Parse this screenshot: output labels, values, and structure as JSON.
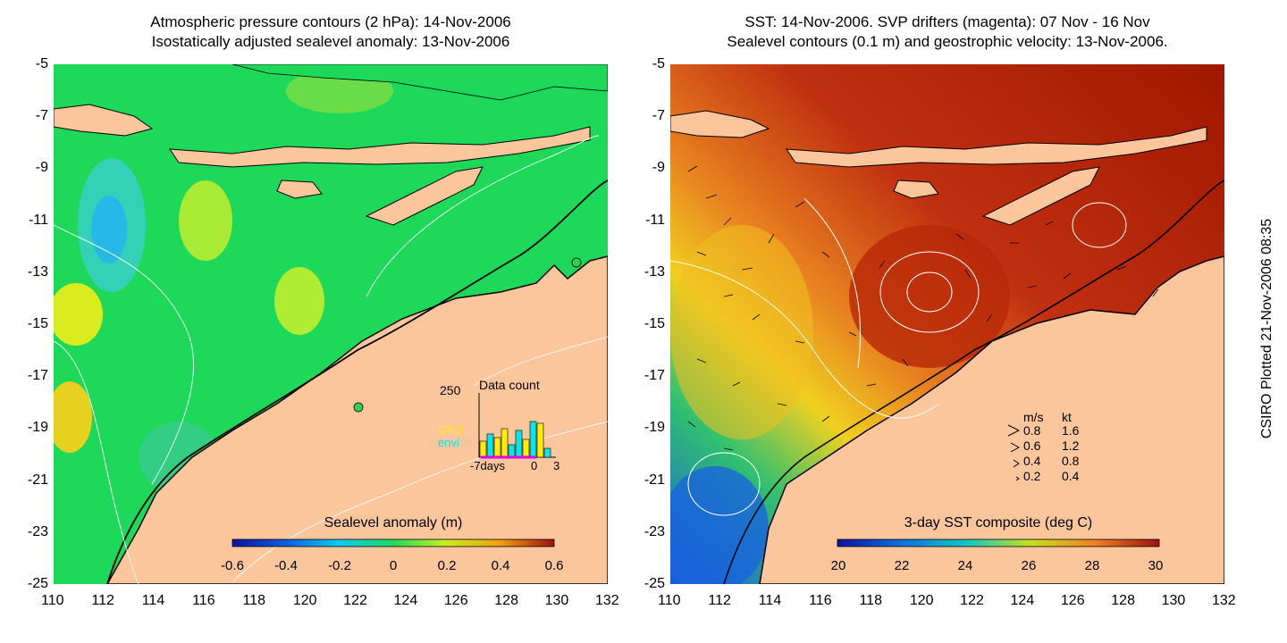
{
  "left_panel": {
    "title_line1": "Atmospheric pressure contours (2 hPa): 14-Nov-2006",
    "title_line2": "Isostatically adjusted sealevel anomaly: 13-Nov-2006",
    "colorbar_label": "Sealevel anomaly (m)",
    "colorbar_ticks": [
      "-0.6",
      "-0.4",
      "-0.2",
      "0",
      "0.2",
      "0.4",
      "0.6"
    ],
    "inset": {
      "title": "Data count",
      "y_max_label": "250",
      "legend_gfo": "GFO",
      "legend_envi": "envi",
      "x_labels": [
        "-7days",
        "0",
        "3"
      ],
      "gfo_color": "#ffee00",
      "envi_color": "#00e8f0"
    }
  },
  "right_panel": {
    "title_line1": "SST: 14-Nov-2006. SVP drifters (magenta): 07 Nov - 16 Nov",
    "title_line2": "Sealevel contours (0.1 m) and geostrophic velocity: 13-Nov-2006.",
    "colorbar_label": "3-day SST composite (deg C)",
    "colorbar_ticks": [
      "20",
      "22",
      "24",
      "26",
      "28",
      "30"
    ],
    "velocity_legend": {
      "header_ms": "m/s",
      "header_kt": "kt",
      "rows": [
        {
          "ms": "0.8",
          "kt": "1.6"
        },
        {
          "ms": "0.6",
          "kt": "1.2"
        },
        {
          "ms": "0.4",
          "kt": "0.8"
        },
        {
          "ms": "0.2",
          "kt": "0.4"
        }
      ]
    }
  },
  "axes": {
    "y_ticks": [
      "-5",
      "-7",
      "-9",
      "-11",
      "-13",
      "-15",
      "-17",
      "-19",
      "-21",
      "-23",
      "-25"
    ],
    "x_ticks": [
      "110",
      "112",
      "114",
      "116",
      "118",
      "120",
      "122",
      "124",
      "126",
      "128",
      "130",
      "132"
    ]
  },
  "credit": "CSIRO Plotted 21-Nov-2006 08:35",
  "colors": {
    "land": "#fbc69c",
    "sla_background": "#1ed85a",
    "sst_background": "#b01800"
  }
}
